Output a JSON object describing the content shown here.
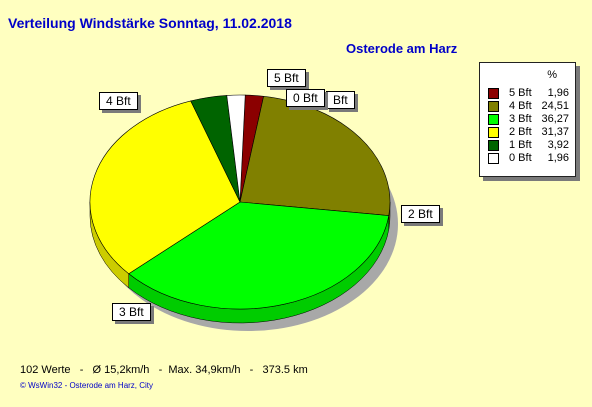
{
  "title": "Verteilung Windstärke  Sonntag, 11.02.2018",
  "subtitle": "Osterode am Harz",
  "legend": {
    "header": "%"
  },
  "chart_data": {
    "type": "pie",
    "title": "Verteilung Windstärke  Sonntag, 11.02.2018",
    "unit": "%",
    "slices": [
      {
        "label": "5 Bft",
        "value": 1.96,
        "value_text": "1,96",
        "color": "#8b0000"
      },
      {
        "label": "4 Bft",
        "value": 24.51,
        "value_text": "24,51",
        "color": "#808000"
      },
      {
        "label": "3 Bft",
        "value": 36.27,
        "value_text": "36,27",
        "color": "#00ff00"
      },
      {
        "label": "2 Bft",
        "value": 31.37,
        "value_text": "31,37",
        "color": "#ffff00"
      },
      {
        "label": "1 Bft",
        "value": 3.92,
        "value_text": "3,92",
        "color": "#006400"
      },
      {
        "label": "0 Bft",
        "value": 1.96,
        "value_text": "1,96",
        "color": "#ffffff"
      }
    ],
    "callouts": [
      "5 Bft",
      "4 Bft",
      "0 Bft",
      "Bft",
      "2 Bft",
      "3 Bft"
    ]
  },
  "footer": {
    "stats": "102 Werte   -   Ø 15,2km/h   -  Max. 34,9km/h   -   373.5 km",
    "credit": "© WsWin32  -  Osterode am Harz, City"
  }
}
